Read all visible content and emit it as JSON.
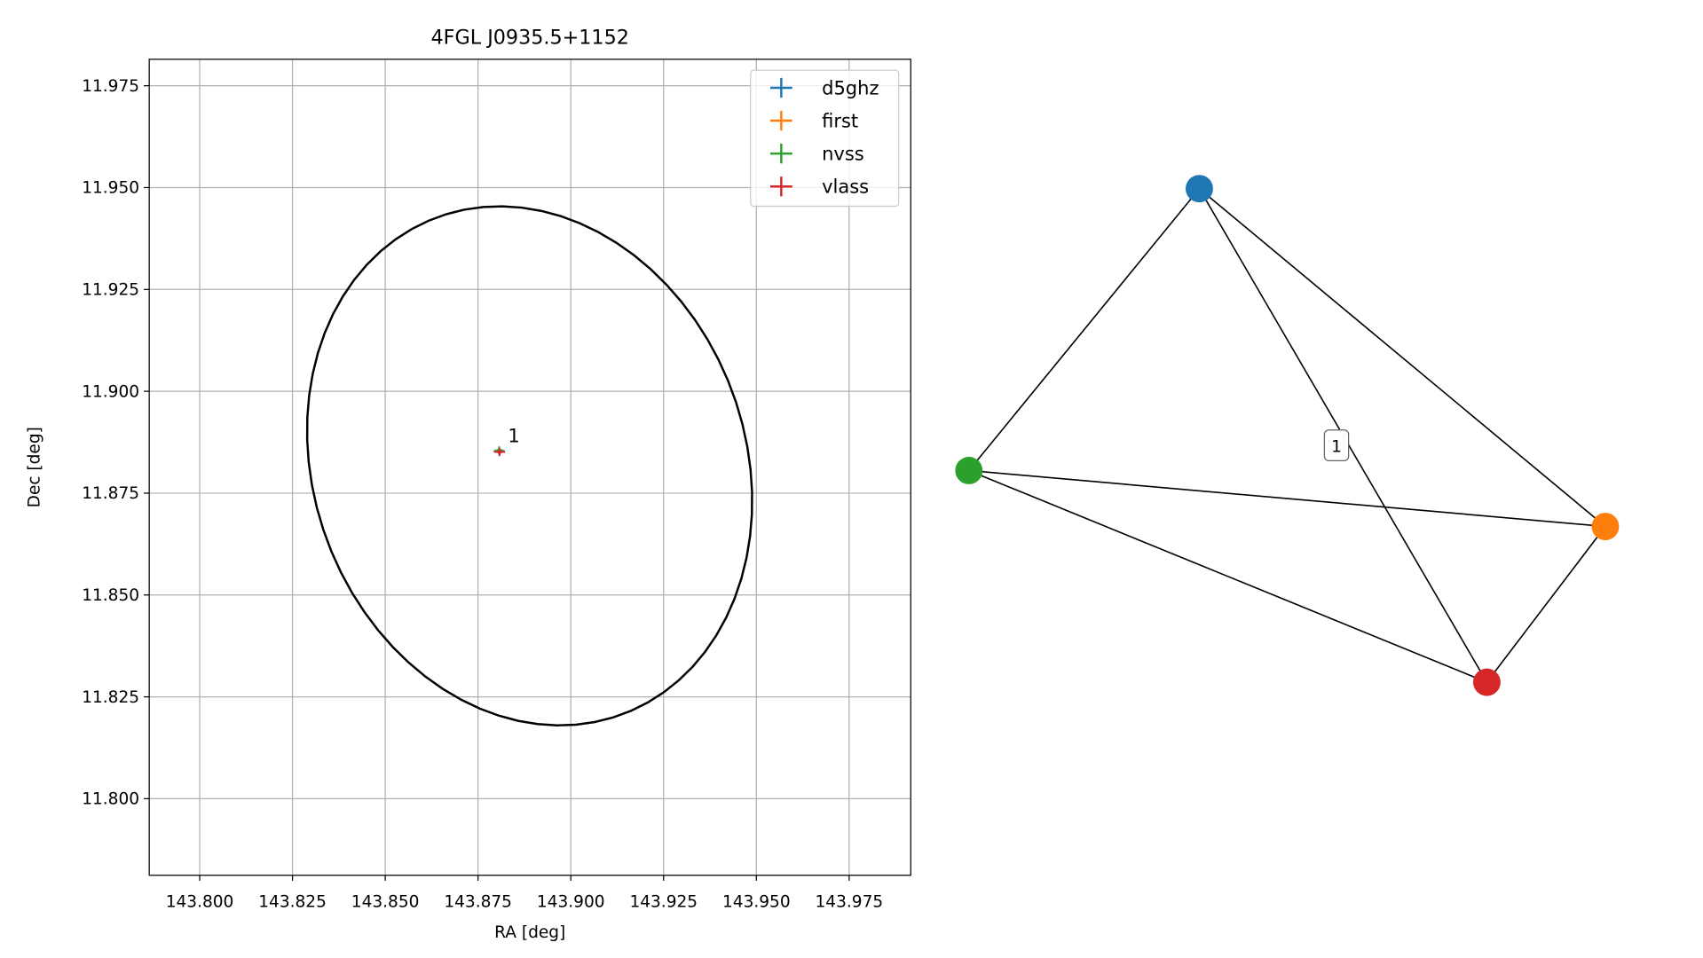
{
  "chart_data": {
    "type": "scatter",
    "title": "4FGL J0935.5+1152",
    "xlabel": "RA [deg]",
    "ylabel": "Dec [deg]",
    "xlim": [
      143.7864,
      143.9916
    ],
    "ylim": [
      11.7812,
      11.9815
    ],
    "xticks": [
      {
        "value": 143.8,
        "label": "143.800"
      },
      143.825,
      {
        "value": 143.85,
        "label": "143.850"
      },
      143.875,
      {
        "value": 143.9,
        "label": "143.900"
      },
      143.925,
      {
        "value": 143.95,
        "label": "143.950"
      },
      143.975
    ],
    "yticks": [
      {
        "value": 11.8,
        "label": "11.800"
      },
      11.825,
      {
        "value": 11.85,
        "label": "11.850"
      },
      11.875,
      {
        "value": 11.9,
        "label": "11.900"
      },
      11.925,
      {
        "value": 11.95,
        "label": "11.950"
      },
      11.975
    ],
    "grid": true,
    "legend": "upper right",
    "series": [
      {
        "name": "d5ghz",
        "color": "#1f77b4",
        "x": [
          143.8807
        ],
        "y": [
          11.8853
        ],
        "xerr": [
          0.0015
        ],
        "yerr": [
          0.001
        ]
      },
      {
        "name": "first",
        "color": "#ff7f0e",
        "x": [
          143.8808
        ],
        "y": [
          11.8852
        ],
        "xerr": [
          0.0012
        ],
        "yerr": [
          0.0008
        ]
      },
      {
        "name": "nvss",
        "color": "#2ca02c",
        "x": [
          143.8807
        ],
        "y": [
          11.8855
        ],
        "xerr": [
          0.0012
        ],
        "yerr": [
          0.001
        ]
      },
      {
        "name": "vlass",
        "color": "#d62728",
        "x": [
          143.8808
        ],
        "y": [
          11.8851
        ],
        "xerr": [
          0.0015
        ],
        "yerr": [
          0.001
        ]
      }
    ],
    "ellipse": {
      "center": [
        143.8889,
        11.8817
      ],
      "semi_axes": [
        0.0663,
        0.0571
      ],
      "angle": -57
    },
    "annotation": "1"
  },
  "graph": {
    "edge_label": "1"
  }
}
